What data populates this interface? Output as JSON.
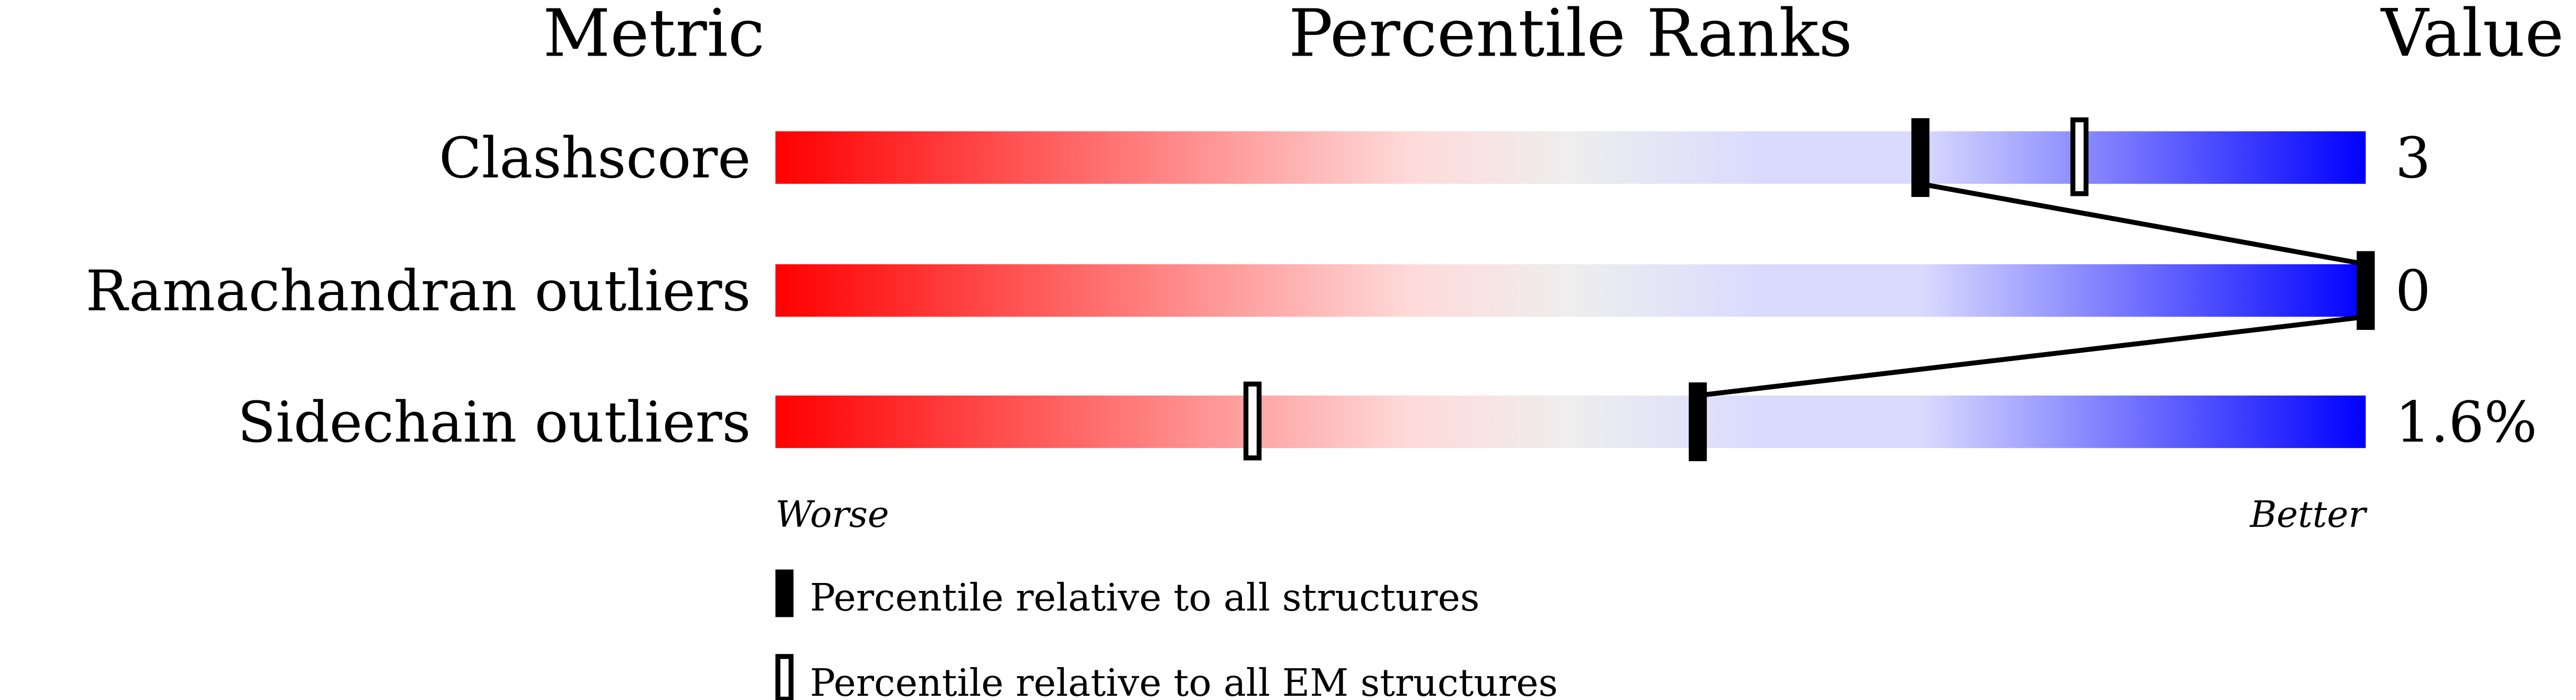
{
  "chart_data": {
    "type": "percentile-bar",
    "headers": {
      "metric": "Metric",
      "ranks": "Percentile Ranks",
      "value": "Value"
    },
    "xlim": [
      0,
      100
    ],
    "rows": [
      {
        "metric": "Clashscore",
        "value": "3",
        "percentile_all": 72,
        "percentile_em": 82
      },
      {
        "metric": "Ramachandran outliers",
        "value": "0",
        "percentile_all": 100,
        "percentile_em": null
      },
      {
        "metric": "Sidechain outliers",
        "value": "1.6%",
        "percentile_all": 58,
        "percentile_em": 30
      }
    ],
    "axis_left": "Worse",
    "axis_right": "Better",
    "legend": [
      {
        "marker": "filled",
        "label": "Percentile relative to all structures"
      },
      {
        "marker": "open",
        "label": "Percentile relative to all EM structures"
      }
    ],
    "gradient_colors": [
      "#ff0000",
      "#ffdada",
      "#eeeeee",
      "#dadaff",
      "#0000ff"
    ]
  }
}
